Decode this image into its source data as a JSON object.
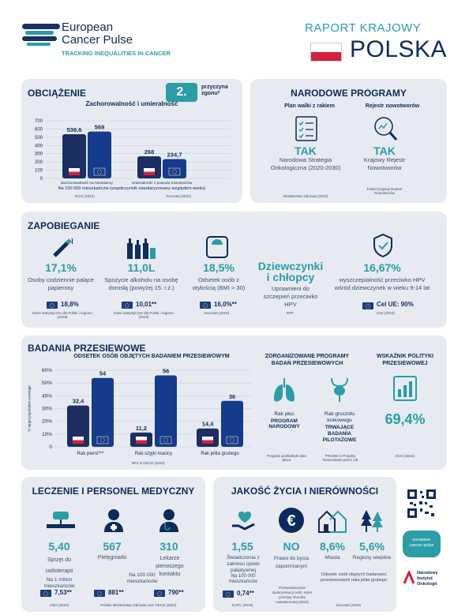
{
  "header": {
    "brand_line1": "European",
    "brand_line2": "Cancer Pulse",
    "brand_tag": "TRACKING INEQUALITIES IN CANCER",
    "report": "RAPORT KRAJOWY",
    "country": "POLSKA"
  },
  "burden": {
    "title": "OBCIĄŻENIE",
    "rank": "2.",
    "rank_text": "przyczyna zgonu*",
    "subtitle": "Zachorowalność i umieralność",
    "chart_data": {
      "type": "bar",
      "title": "Zachorowalność i umieralność",
      "categories": [
        "Zachorowalność na nowotwory",
        "Umieralność z powodu nowotworów"
      ],
      "series": [
        {
          "name": "Polska",
          "values": [
            536.6,
            268
          ]
        },
        {
          "name": "UE",
          "values": [
            569,
            234.7
          ]
        }
      ],
      "labels": [
        "536,6",
        "569",
        "268",
        "234,7"
      ],
      "yticks": [
        "700",
        "600",
        "500",
        "400",
        "300",
        "200",
        "100",
        "0"
      ],
      "ylim": [
        0,
        700
      ]
    },
    "note": "Na 100 000 mieszkańców (współczynnik standaryzowany względem wieku)",
    "src1": "ECIS (2022)",
    "src2": "Eurostat (2022)"
  },
  "programs": {
    "title": "NARODOWE PROGRAMY",
    "h1": "Plan walki z rakiem",
    "h2": "Rejestr nowotworów",
    "v1": "TAK",
    "v2": "TAK",
    "d1": "Narodowa Strategia Onkologiczna (2020-2030)",
    "d2": "Krajowy Rejestr Nowotworów",
    "s1": "Ministerstwo Zdrowia (2023)",
    "s2": "Polski Krajowy Rejestr Nowotworów"
  },
  "prevention": {
    "title": "ZAPOBIEGANIE",
    "items": [
      {
        "value": "17,1%",
        "label": "Osoby codziennie palące papierosy",
        "eu": "18,8%",
        "src": "Dane statystyczne dla Polski i regionu (2019)"
      },
      {
        "value": "11,0L",
        "label": "Spożycie alkoholu na osobę dorosłą (powyżej 15. r.ż.)",
        "eu": "10,01**",
        "src": "Dane statystyczne dla Polski i regionu (2019)"
      },
      {
        "value": "18,5%",
        "label": "Odsetek osób z otyłością (BMI > 30)",
        "eu": "16,0%**",
        "src": "Eurostat (2019)"
      },
      {
        "value": "Dziewczynki i chłopcy",
        "label": "Uprawnieni do szczepień przeciwko HPV",
        "eu": "",
        "src": "EPF"
      },
      {
        "value": "16,67%",
        "label": "wyszczepialność przeciwko HPV wśród dziewczynek w wieku 9-14 lat",
        "eu": "Cel UE: 90%",
        "src": "CeZ (2023)"
      }
    ]
  },
  "screening": {
    "title": "BADANIA PRZESIEWOWE",
    "subtitle": "ODSETEK OSÓB OBJĘTYCH BADANIEM PRZESIEWOWYM",
    "ylabel": "% target population coverage",
    "chart_data": {
      "type": "bar",
      "categories": [
        "Rak piersi***",
        "Rak szyjki macicy",
        "Rak jelita grubego"
      ],
      "series": [
        {
          "name": "Polska",
          "values": [
            32.4,
            11.2,
            14.4
          ]
        },
        {
          "name": "UE",
          "values": [
            54,
            56,
            36
          ]
        }
      ],
      "labels": [
        "32,4",
        "54",
        "11,2",
        "56",
        "14,4",
        "36"
      ],
      "yticks": [
        "60%",
        "50%",
        "40%",
        "30%",
        "20%",
        "10%",
        "0"
      ],
      "ylim": [
        0,
        60
      ]
    },
    "src": "NFZ & OECD (2023)",
    "org_title": "ZORGANIZOWANE PROGRAMY BADAŃ PRZESIEWOWYCH",
    "lung": "Rak płuc",
    "lung_status": "PROGRAM NARODOWY",
    "lung_src": "Program profilaktyki raka płuca",
    "crc": "Rak gruczołu krokowego",
    "crc_status": "TRWAJĄCE BADANIA PILOTAŻOWE",
    "crc_src": "PRAISE-U Projekty finansowane przez UE",
    "policy_title": "WSKAŹNIK POLITYKI PRZESIEWOWEJ",
    "policy_value": "69,4%",
    "policy_src": "ECO (2024)"
  },
  "treatment": {
    "title": "LECZENIE I PERSONEL MEDYCZNY",
    "items": [
      {
        "value": "5,40",
        "label": "Sprzęt do radioterapii",
        "eu": "7,53**",
        "src": "IAEA (2022)"
      },
      {
        "value": "567",
        "label": "Pielęgniarki",
        "eu": "881**",
        "src": "Polskie Ministerstwo Zdrowia oraz OECD (2022)"
      },
      {
        "value": "310",
        "label": "Lekarze pierwszego kontaktu",
        "eu": "790**",
        "src": ""
      }
    ],
    "note1": "Na 1 milion mieszkańców",
    "note2": "Na 100 000 mieszkańców"
  },
  "quality": {
    "title": "JAKOŚĆ ŻYCIA I NIERÓWNOŚCI",
    "items": [
      {
        "value": "1,55",
        "label": "Świadczenia z zakresu opieki paliatywnej",
        "note": "Na 100 000 mieszkańców",
        "eu": "0,74**",
        "src": "EAPC (2019)"
      },
      {
        "value": "NO",
        "label": "Prawo do bycia zapomnianym",
        "note": "Przewodniczenie dyskryminacji osób, które przeżyły chorobę nowotworową (2023)",
        "eu": "",
        "src": ""
      },
      {
        "value": "8,6%",
        "label": "Miasta",
        "eu": "",
        "src": ""
      },
      {
        "value": "5,6%",
        "label": "Regiony wiejskie",
        "eu": "",
        "src": "Eurostat (2019)"
      }
    ],
    "inequality_note": "Odsetek osób objętych badaniami przesiewowymi raka jelita grubego"
  },
  "logos": {
    "ecp": "european cancer pulse",
    "nio1": "Narodowy",
    "nio2": "Instytut",
    "nio3": "Onkologii"
  },
  "colors": {
    "navy": "#0d2b5c",
    "teal": "#2a9da6",
    "panel": "#e7eaf0",
    "polska": "#1b2f63",
    "eu": "#143b8c",
    "red": "#d4213d"
  }
}
